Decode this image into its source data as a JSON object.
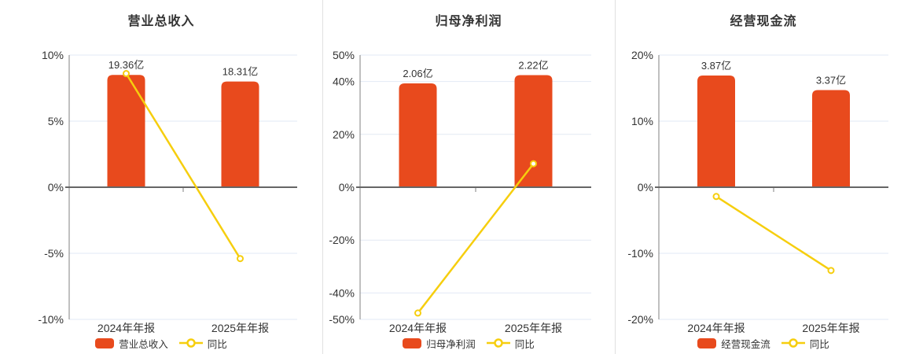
{
  "colors": {
    "bar": "#e84a1d",
    "line": "#f6ce0e",
    "marker_fill": "#ffffff",
    "title_text": "#333333",
    "axis_text": "#333333",
    "value_label_text": "#333333",
    "grid_line": "#e2e9f4",
    "zero_line": "#666666",
    "axis_line": "#808080",
    "divider": "#e0e0e0",
    "background": "#ffffff"
  },
  "legend": {
    "line_label": "同比"
  },
  "chart_data": [
    {
      "type": "bar",
      "title": "营业总收入",
      "categories": [
        "2024年年报",
        "2025年年报"
      ],
      "bar_series": {
        "name": "营业总收入",
        "value_labels": [
          "19.36亿",
          "18.31亿"
        ],
        "values_yi": [
          19.36,
          18.31
        ],
        "rendered_height_axis_units": [
          8.5,
          8.0
        ]
      },
      "line_series": {
        "name": "同比",
        "values_pct": [
          8.6,
          -5.4
        ]
      },
      "y_axis": {
        "ticks": [
          10,
          5,
          0,
          -5,
          -10
        ],
        "min": -10,
        "max": 10,
        "unit": "%"
      },
      "grid": true,
      "legend_position": "bottom"
    },
    {
      "type": "bar",
      "title": "归母净利润",
      "categories": [
        "2024年年报",
        "2025年年报"
      ],
      "bar_series": {
        "name": "归母净利润",
        "value_labels": [
          "2.06亿",
          "2.22亿"
        ],
        "values_yi": [
          2.06,
          2.22
        ],
        "rendered_height_axis_units": [
          39.3,
          42.4
        ]
      },
      "line_series": {
        "name": "同比",
        "values_pct": [
          -47.6,
          8.9
        ]
      },
      "y_axis": {
        "ticks": [
          50,
          40,
          20,
          0,
          -20,
          -40,
          -50
        ],
        "min": -50,
        "max": 50,
        "unit": "%"
      },
      "grid": true,
      "legend_position": "bottom"
    },
    {
      "type": "bar",
      "title": "经营现金流",
      "categories": [
        "2024年年报",
        "2025年年报"
      ],
      "bar_series": {
        "name": "经营现金流",
        "value_labels": [
          "3.87亿",
          "3.37亿"
        ],
        "values_yi": [
          3.87,
          3.37
        ],
        "rendered_height_axis_units": [
          16.9,
          14.7
        ]
      },
      "line_series": {
        "name": "同比",
        "values_pct": [
          -1.4,
          -12.6
        ]
      },
      "y_axis": {
        "ticks": [
          20,
          10,
          0,
          -10,
          -20
        ],
        "min": -20,
        "max": 20,
        "unit": "%"
      },
      "grid": true,
      "legend_position": "bottom"
    }
  ]
}
